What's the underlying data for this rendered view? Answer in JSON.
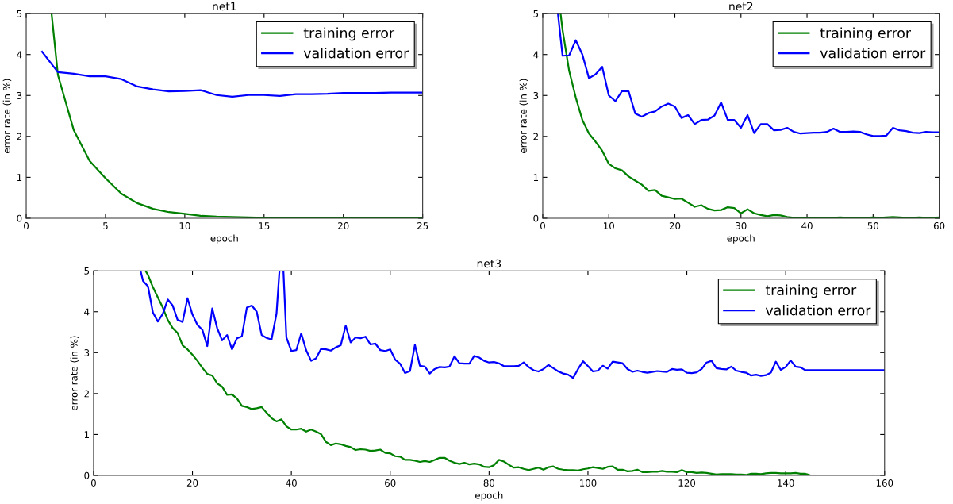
{
  "chart_data": [
    {
      "type": "line",
      "title": "net1",
      "xlabel": "epoch",
      "ylabel": "error rate (in %)",
      "xlim": [
        0,
        25
      ],
      "ylim": [
        0,
        5
      ],
      "xticks": [
        0,
        5,
        10,
        15,
        20,
        25
      ],
      "yticks": [
        0,
        1,
        2,
        3,
        4,
        5
      ],
      "grid": false,
      "legend": "top right",
      "marker": "none",
      "line_style": "solid",
      "series": [
        {
          "name": "training error",
          "color": "#008000",
          "x": [
            1.6,
            2,
            3,
            4,
            5,
            6,
            7,
            8,
            9,
            10,
            11,
            12,
            13,
            14,
            15,
            16,
            17,
            18,
            19,
            20,
            21,
            22,
            23,
            24,
            25
          ],
          "values": [
            5,
            3.5,
            2.15,
            1.4,
            0.98,
            0.6,
            0.37,
            0.23,
            0.15,
            0.11,
            0.06,
            0.04,
            0.03,
            0.02,
            0.01,
            0,
            0,
            0,
            0,
            0,
            0,
            0,
            0,
            0,
            0
          ]
        },
        {
          "name": "validation error",
          "color": "#0000ff",
          "x": [
            1,
            2,
            3,
            4,
            5,
            6,
            7,
            8,
            9,
            10,
            11,
            12,
            13,
            14,
            15,
            16,
            17,
            18,
            19,
            20,
            21,
            22,
            23,
            24,
            25
          ],
          "values": [
            4.07,
            3.57,
            3.53,
            3.47,
            3.47,
            3.4,
            3.22,
            3.15,
            3.1,
            3.11,
            3.13,
            3.01,
            2.97,
            3.01,
            3.01,
            2.99,
            3.03,
            3.03,
            3.04,
            3.06,
            3.06,
            3.06,
            3.07,
            3.07,
            3.07
          ]
        }
      ]
    },
    {
      "type": "line",
      "title": "net2",
      "xlabel": "epoch",
      "ylabel": "error rate (in %)",
      "xlim": [
        0,
        60
      ],
      "ylim": [
        0,
        5
      ],
      "xticks": [
        0,
        10,
        20,
        30,
        40,
        50,
        60
      ],
      "yticks": [
        0,
        1,
        2,
        3,
        4,
        5
      ],
      "grid": false,
      "legend": "top right",
      "marker": "none",
      "line_style": "solid",
      "series": [
        {
          "name": "training error",
          "color": "#008000",
          "x": [
            2.7,
            3,
            4,
            5,
            6,
            7,
            8,
            9,
            10,
            11,
            12,
            13,
            14,
            15,
            16,
            17,
            18,
            19,
            20,
            21,
            22,
            23,
            24,
            25,
            26,
            27,
            28,
            29,
            30,
            31,
            32,
            33,
            34,
            35,
            36,
            37,
            38,
            39,
            40,
            41,
            42,
            43,
            44,
            45,
            46,
            47,
            48,
            49,
            50,
            51,
            52,
            53,
            54,
            55,
            56,
            57,
            58,
            59,
            60
          ],
          "values": [
            5,
            4.6,
            3.6,
            2.95,
            2.4,
            2.07,
            1.87,
            1.65,
            1.33,
            1.22,
            1.17,
            1.02,
            0.92,
            0.82,
            0.67,
            0.69,
            0.55,
            0.51,
            0.47,
            0.48,
            0.38,
            0.28,
            0.32,
            0.23,
            0.19,
            0.2,
            0.27,
            0.25,
            0.12,
            0.22,
            0.12,
            0.08,
            0.05,
            0.08,
            0.07,
            0.03,
            0.01,
            0.01,
            0.01,
            0.01,
            0.01,
            0.01,
            0.01,
            0.02,
            0.01,
            0.01,
            0.01,
            0.01,
            0.02,
            0.01,
            0.02,
            0.03,
            0.02,
            0.01,
            0.01,
            0.02,
            0.01,
            0.01,
            0.02
          ]
        },
        {
          "name": "validation error",
          "color": "#0000ff",
          "x": [
            2.3,
            3,
            4,
            5,
            6,
            7,
            8,
            9,
            10,
            11,
            12,
            13,
            14,
            15,
            16,
            17,
            18,
            19,
            20,
            21,
            22,
            23,
            24,
            25,
            26,
            27,
            28,
            29,
            30,
            31,
            32,
            33,
            34,
            35,
            36,
            37,
            38,
            39,
            40,
            41,
            42,
            43,
            44,
            45,
            46,
            47,
            48,
            49,
            50,
            51,
            52,
            53,
            54,
            55,
            56,
            57,
            58,
            59,
            60
          ],
          "values": [
            5,
            3.97,
            3.98,
            4.35,
            4.0,
            3.42,
            3.52,
            3.7,
            3.0,
            2.86,
            3.11,
            3.1,
            2.56,
            2.48,
            2.57,
            2.61,
            2.73,
            2.8,
            2.73,
            2.45,
            2.52,
            2.3,
            2.4,
            2.41,
            2.51,
            2.83,
            2.4,
            2.4,
            2.21,
            2.52,
            2.08,
            2.3,
            2.3,
            2.15,
            2.16,
            2.21,
            2.11,
            2.07,
            2.08,
            2.09,
            2.09,
            2.11,
            2.19,
            2.11,
            2.11,
            2.12,
            2.11,
            2.05,
            2.01,
            2.01,
            2.02,
            2.21,
            2.15,
            2.13,
            2.09,
            2.08,
            2.11,
            2.1,
            2.1
          ]
        }
      ]
    },
    {
      "type": "line",
      "title": "net3",
      "xlabel": "epoch",
      "ylabel": "error rate (in %)",
      "xlim": [
        0,
        160
      ],
      "ylim": [
        0,
        5
      ],
      "xticks": [
        0,
        20,
        40,
        60,
        80,
        100,
        120,
        140,
        160
      ],
      "yticks": [
        0,
        1,
        2,
        3,
        4,
        5
      ],
      "grid": false,
      "legend": "top right",
      "marker": "none",
      "line_style": "solid",
      "series": [
        {
          "name": "training error",
          "color": "#008000",
          "x": [
            10.5,
            11,
            12,
            13,
            14,
            15,
            16,
            17,
            18,
            19,
            20,
            21,
            22,
            23,
            24,
            25,
            26,
            27,
            28,
            29,
            30,
            31,
            32,
            33,
            34,
            35,
            36,
            37,
            38,
            39,
            40,
            41,
            42,
            43,
            44,
            45,
            46,
            47,
            48,
            49,
            50,
            51,
            52,
            53,
            54,
            55,
            56,
            57,
            58,
            59,
            60,
            61,
            62,
            63,
            64,
            65,
            66,
            67,
            68,
            69,
            70,
            71,
            72,
            73,
            74,
            75,
            76,
            77,
            78,
            79,
            80,
            81,
            82,
            83,
            84,
            85,
            86,
            87,
            88,
            89,
            90,
            91,
            92,
            93,
            94,
            95,
            96,
            97,
            98,
            99,
            100,
            101,
            102,
            103,
            104,
            105,
            106,
            107,
            108,
            109,
            110,
            111,
            112,
            113,
            114,
            115,
            116,
            117,
            118,
            119,
            120,
            121,
            122,
            123,
            124,
            125,
            126,
            127,
            128,
            129,
            130,
            131,
            132,
            133,
            134,
            135,
            136,
            137,
            138,
            139,
            140,
            141,
            142,
            143,
            144,
            145,
            160
          ],
          "values": [
            5,
            4.9,
            4.6,
            4.35,
            4.1,
            3.8,
            3.6,
            3.48,
            3.18,
            3.08,
            2.95,
            2.8,
            2.63,
            2.48,
            2.44,
            2.25,
            2.17,
            1.97,
            1.98,
            1.88,
            1.7,
            1.67,
            1.62,
            1.64,
            1.67,
            1.53,
            1.4,
            1.32,
            1.37,
            1.2,
            1.12,
            1.12,
            1.14,
            1.07,
            1.12,
            1.07,
            1.01,
            0.82,
            0.74,
            0.78,
            0.76,
            0.72,
            0.69,
            0.62,
            0.64,
            0.63,
            0.6,
            0.61,
            0.63,
            0.55,
            0.54,
            0.47,
            0.46,
            0.38,
            0.38,
            0.36,
            0.33,
            0.35,
            0.33,
            0.38,
            0.43,
            0.43,
            0.36,
            0.31,
            0.28,
            0.31,
            0.27,
            0.29,
            0.27,
            0.21,
            0.2,
            0.25,
            0.38,
            0.34,
            0.26,
            0.19,
            0.2,
            0.16,
            0.13,
            0.16,
            0.19,
            0.14,
            0.2,
            0.22,
            0.16,
            0.14,
            0.13,
            0.13,
            0.12,
            0.15,
            0.17,
            0.2,
            0.18,
            0.16,
            0.21,
            0.22,
            0.14,
            0.14,
            0.1,
            0.11,
            0.14,
            0.08,
            0.08,
            0.09,
            0.09,
            0.11,
            0.09,
            0.09,
            0.08,
            0.13,
            0.08,
            0.08,
            0.06,
            0.07,
            0.06,
            0.04,
            0.02,
            0.03,
            0.03,
            0.03,
            0.02,
            0.02,
            0.01,
            0.04,
            0.04,
            0.03,
            0.05,
            0.06,
            0.06,
            0.05,
            0.05,
            0.05,
            0.06,
            0.04,
            0.04,
            0,
            0
          ]
        },
        {
          "name": "validation error",
          "color": "#0000ff",
          "x": [
            9.5,
            10,
            11,
            12,
            13,
            14,
            15,
            16,
            17,
            18,
            19,
            20,
            21,
            22,
            23,
            24,
            25,
            26,
            27,
            28,
            29,
            30,
            31,
            32,
            33,
            34,
            35,
            36,
            37,
            37.6,
            38,
            38.4,
            39,
            40,
            41,
            42,
            43,
            44,
            45,
            46,
            47,
            48,
            49,
            50,
            51,
            52,
            53,
            54,
            55,
            56,
            57,
            58,
            59,
            60,
            61,
            62,
            63,
            64,
            65,
            66,
            67,
            68,
            69,
            70,
            71,
            72,
            73,
            74,
            75,
            76,
            77,
            78,
            79,
            80,
            81,
            82,
            83,
            84,
            85,
            86,
            87,
            88,
            89,
            90,
            91,
            92,
            93,
            94,
            95,
            96,
            97,
            98,
            99,
            100,
            101,
            102,
            103,
            104,
            105,
            106,
            107,
            108,
            109,
            110,
            111,
            112,
            113,
            114,
            115,
            116,
            117,
            118,
            119,
            120,
            121,
            122,
            123,
            124,
            125,
            126,
            127,
            128,
            129,
            130,
            131,
            132,
            133,
            134,
            135,
            136,
            137,
            138,
            139,
            140,
            141,
            142,
            143,
            144,
            145,
            160
          ],
          "values": [
            5,
            4.75,
            4.62,
            3.98,
            3.76,
            3.95,
            4.3,
            4.15,
            3.8,
            3.75,
            4.33,
            3.93,
            3.68,
            3.56,
            3.16,
            4.08,
            3.6,
            3.3,
            3.43,
            3.08,
            3.35,
            3.4,
            4.1,
            4.15,
            4.0,
            3.43,
            3.36,
            3.32,
            3.95,
            5,
            null,
            5,
            3.37,
            3.04,
            3.06,
            3.47,
            3.06,
            2.8,
            2.86,
            3.09,
            3.08,
            3.05,
            3.13,
            3.18,
            3.66,
            3.25,
            3.37,
            3.35,
            3.39,
            3.2,
            3.22,
            3.06,
            3.04,
            3.08,
            2.83,
            2.73,
            2.5,
            2.55,
            3.19,
            2.68,
            2.66,
            2.49,
            2.6,
            2.65,
            2.64,
            2.66,
            2.91,
            2.74,
            2.73,
            2.73,
            2.92,
            2.88,
            2.8,
            2.76,
            2.77,
            2.74,
            2.67,
            2.67,
            2.67,
            2.68,
            2.76,
            2.65,
            2.57,
            2.54,
            2.6,
            2.7,
            2.62,
            2.54,
            2.49,
            2.46,
            2.38,
            2.6,
            2.79,
            2.67,
            2.54,
            2.56,
            2.68,
            2.61,
            2.78,
            2.76,
            2.74,
            2.6,
            2.53,
            2.56,
            2.53,
            2.51,
            2.53,
            2.55,
            2.54,
            2.53,
            2.6,
            2.58,
            2.59,
            2.51,
            2.5,
            2.52,
            2.6,
            2.76,
            2.8,
            2.62,
            2.6,
            2.59,
            2.66,
            2.56,
            2.53,
            2.51,
            2.44,
            2.46,
            2.43,
            2.45,
            2.51,
            2.78,
            2.58,
            2.65,
            2.81,
            2.66,
            2.64,
            2.57,
            2.57,
            2.57
          ]
        }
      ]
    }
  ]
}
